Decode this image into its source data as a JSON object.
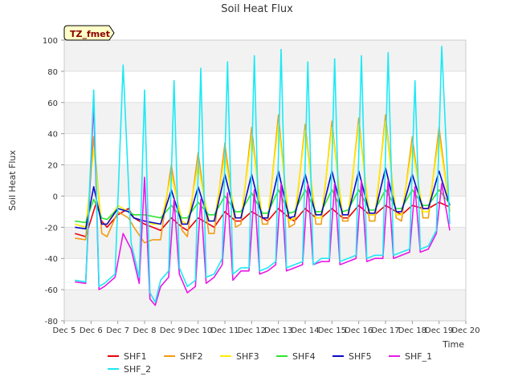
{
  "chart_data": {
    "type": "line",
    "title": "Soil Heat Flux",
    "xlabel": "Time",
    "ylabel": "Soil Heat Flux",
    "ylim": [
      -80,
      100
    ],
    "xlim": [
      5,
      20
    ],
    "yticks": [
      -80,
      -60,
      -40,
      -20,
      0,
      20,
      40,
      60,
      80,
      100
    ],
    "xticks": [
      {
        "value": 5,
        "label": "Dec 5"
      },
      {
        "value": 6,
        "label": "Dec 6"
      },
      {
        "value": 7,
        "label": "Dec 7"
      },
      {
        "value": 8,
        "label": "Dec 8"
      },
      {
        "value": 9,
        "label": "Dec 9"
      },
      {
        "value": 10,
        "label": "Dec 10"
      },
      {
        "value": 11,
        "label": "Dec 11"
      },
      {
        "value": 12,
        "label": "Dec 12"
      },
      {
        "value": 13,
        "label": "Dec 13"
      },
      {
        "value": 14,
        "label": "Dec 14"
      },
      {
        "value": 15,
        "label": "Dec 15"
      },
      {
        "value": 16,
        "label": "Dec 16"
      },
      {
        "value": 17,
        "label": "Dec 17"
      },
      {
        "value": 18,
        "label": "Dec 18"
      },
      {
        "value": 19,
        "label": "Dec 19"
      },
      {
        "value": 20,
        "label": "Dec 20"
      }
    ],
    "annotation": "TZ_fmet",
    "grid": "alternating horizontal bands",
    "legend_position": "bottom",
    "x_unit_note": "x values are day-of-month in December",
    "series": [
      {
        "name": "SHF1",
        "color": "#e8000b",
        "x": [
          5.4,
          5.8,
          6.2,
          6.4,
          6.6,
          7.0,
          7.4,
          7.6,
          8.0,
          8.3,
          8.6,
          9.0,
          9.4,
          9.6,
          10.0,
          10.4,
          10.6,
          11.0,
          11.4,
          11.6,
          12.0,
          12.4,
          12.6,
          13.0,
          13.4,
          13.6,
          14.0,
          14.4,
          14.6,
          15.0,
          15.4,
          15.6,
          16.0,
          16.4,
          16.6,
          17.0,
          17.4,
          17.6,
          18.0,
          18.4,
          18.6,
          19.0,
          19.4
        ],
        "y": [
          -24,
          -26,
          -4,
          -16,
          -20,
          -12,
          -8,
          -14,
          -18,
          -20,
          -22,
          -14,
          -20,
          -22,
          -14,
          -18,
          -20,
          -10,
          -16,
          -16,
          -10,
          -14,
          -16,
          -8,
          -14,
          -16,
          -8,
          -14,
          -14,
          -8,
          -14,
          -14,
          -6,
          -12,
          -12,
          -6,
          -10,
          -12,
          -6,
          -8,
          -8,
          -4,
          -7
        ]
      },
      {
        "name": "SHF2",
        "color": "#f39c12",
        "x": [
          5.4,
          5.8,
          6.1,
          6.4,
          6.6,
          7.0,
          7.4,
          7.6,
          8.0,
          8.3,
          8.6,
          9.0,
          9.4,
          9.6,
          10.0,
          10.4,
          10.6,
          11.0,
          11.4,
          11.6,
          12.0,
          12.4,
          12.6,
          13.0,
          13.4,
          13.6,
          14.0,
          14.4,
          14.6,
          15.0,
          15.4,
          15.6,
          16.0,
          16.4,
          16.6,
          17.0,
          17.4,
          17.6,
          18.0,
          18.4,
          18.6,
          19.0,
          19.4
        ],
        "y": [
          -27,
          -28,
          38,
          -24,
          -26,
          -10,
          -14,
          -20,
          -30,
          -28,
          -28,
          20,
          -22,
          -26,
          28,
          -24,
          -24,
          34,
          -20,
          -18,
          44,
          -18,
          -18,
          52,
          -20,
          -18,
          46,
          -18,
          -18,
          48,
          -16,
          -16,
          50,
          -16,
          -16,
          52,
          -14,
          -16,
          38,
          -14,
          -14,
          44,
          -10
        ]
      },
      {
        "name": "SHF3",
        "color": "#ffec00",
        "x": [
          5.4,
          5.8,
          6.1,
          6.4,
          6.6,
          7.0,
          7.4,
          7.6,
          8.0,
          8.3,
          8.6,
          9.0,
          9.4,
          9.6,
          10.0,
          10.4,
          10.6,
          11.0,
          11.4,
          11.6,
          12.0,
          12.4,
          12.6,
          13.0,
          13.4,
          13.6,
          14.0,
          14.4,
          14.6,
          15.0,
          15.4,
          15.6,
          16.0,
          16.4,
          16.6,
          17.0,
          17.4,
          17.6,
          18.0,
          18.4,
          18.6,
          19.0,
          19.4
        ],
        "y": [
          -18,
          -20,
          30,
          -18,
          -18,
          -6,
          -10,
          -14,
          -16,
          -18,
          -18,
          14,
          -16,
          -18,
          20,
          -16,
          -16,
          26,
          -14,
          -14,
          38,
          -14,
          -14,
          46,
          -16,
          -14,
          42,
          -14,
          -14,
          44,
          -12,
          -12,
          46,
          -12,
          -12,
          48,
          -12,
          -12,
          32,
          -10,
          -10,
          38,
          -8
        ]
      },
      {
        "name": "SHF4",
        "color": "#2ee52e",
        "x": [
          5.4,
          5.8,
          6.1,
          6.4,
          6.6,
          7.0,
          7.4,
          7.6,
          8.0,
          8.3,
          8.6,
          9.0,
          9.4,
          9.6,
          10.0,
          10.4,
          10.6,
          11.0,
          11.4,
          11.6,
          12.0,
          12.4,
          12.6,
          13.0,
          13.4,
          13.6,
          14.0,
          14.4,
          14.6,
          15.0,
          15.4,
          15.6,
          16.0,
          16.4,
          16.6,
          17.0,
          17.4,
          17.6,
          18.0,
          18.4,
          18.6,
          19.0,
          19.4
        ],
        "y": [
          -16,
          -17,
          -2,
          -14,
          -15,
          -8,
          -10,
          -12,
          -12,
          -13,
          -14,
          -6,
          -14,
          -14,
          -4,
          -12,
          -12,
          0,
          -10,
          -10,
          2,
          -11,
          -11,
          4,
          -11,
          -10,
          4,
          -10,
          -10,
          4,
          -10,
          -9,
          4,
          -9,
          -9,
          4,
          -8,
          -8,
          4,
          -6,
          -6,
          4,
          -5
        ]
      },
      {
        "name": "SHF5",
        "color": "#0a0ac8",
        "x": [
          5.4,
          5.8,
          6.1,
          6.4,
          6.6,
          7.0,
          7.4,
          7.6,
          8.0,
          8.3,
          8.6,
          9.0,
          9.4,
          9.6,
          10.0,
          10.4,
          10.6,
          11.0,
          11.4,
          11.6,
          12.0,
          12.4,
          12.6,
          13.0,
          13.4,
          13.6,
          14.0,
          14.4,
          14.6,
          15.0,
          15.4,
          15.6,
          16.0,
          16.4,
          16.6,
          17.0,
          17.4,
          17.6,
          18.0,
          18.4,
          18.6,
          19.0,
          19.4
        ],
        "y": [
          -20,
          -21,
          6,
          -18,
          -18,
          -8,
          -10,
          -14,
          -16,
          -17,
          -18,
          4,
          -18,
          -18,
          6,
          -16,
          -16,
          14,
          -14,
          -14,
          14,
          -14,
          -14,
          16,
          -14,
          -13,
          14,
          -12,
          -12,
          16,
          -12,
          -12,
          16,
          -11,
          -11,
          18,
          -10,
          -10,
          14,
          -8,
          -8,
          16,
          -6
        ]
      },
      {
        "name": "SHF_1",
        "color": "#e619e6",
        "x": [
          5.4,
          5.8,
          6.1,
          6.3,
          6.5,
          6.9,
          7.2,
          7.5,
          7.8,
          8.0,
          8.2,
          8.4,
          8.6,
          8.9,
          9.1,
          9.3,
          9.6,
          9.9,
          10.1,
          10.3,
          10.6,
          10.9,
          11.1,
          11.3,
          11.6,
          11.9,
          12.1,
          12.3,
          12.6,
          12.9,
          13.1,
          13.3,
          13.6,
          13.9,
          14.1,
          14.3,
          14.6,
          14.9,
          15.1,
          15.3,
          15.6,
          15.9,
          16.1,
          16.3,
          16.6,
          16.9,
          17.1,
          17.3,
          17.6,
          17.9,
          18.1,
          18.3,
          18.6,
          18.9,
          19.1,
          19.4
        ],
        "y": [
          -55,
          -56,
          60,
          -60,
          -58,
          -52,
          -24,
          -34,
          -56,
          12,
          -66,
          -70,
          -58,
          -52,
          -2,
          -50,
          -62,
          -58,
          -2,
          -56,
          -52,
          -44,
          2,
          -54,
          -48,
          -48,
          4,
          -50,
          -48,
          -44,
          8,
          -48,
          -46,
          -44,
          8,
          -44,
          -42,
          -42,
          8,
          -44,
          -42,
          -40,
          10,
          -42,
          -40,
          -40,
          10,
          -40,
          -38,
          -36,
          6,
          -36,
          -34,
          -24,
          8,
          -22
        ]
      },
      {
        "name": "SHF_2",
        "color": "#1de9f4",
        "x": [
          5.4,
          5.8,
          6.1,
          6.3,
          6.5,
          6.9,
          7.2,
          7.5,
          7.8,
          8.0,
          8.2,
          8.4,
          8.6,
          8.9,
          9.1,
          9.3,
          9.6,
          9.9,
          10.1,
          10.3,
          10.6,
          10.9,
          11.1,
          11.3,
          11.6,
          11.9,
          12.1,
          12.3,
          12.6,
          12.9,
          13.1,
          13.3,
          13.6,
          13.9,
          14.1,
          14.3,
          14.6,
          14.9,
          15.1,
          15.3,
          15.6,
          15.9,
          16.1,
          16.3,
          16.6,
          16.9,
          17.1,
          17.3,
          17.6,
          17.9,
          18.1,
          18.3,
          18.6,
          18.9,
          19.1,
          19.4
        ],
        "y": [
          -54,
          -55,
          68,
          -58,
          -56,
          -50,
          84,
          -30,
          -52,
          68,
          -62,
          -68,
          -54,
          -48,
          74,
          -46,
          -58,
          -54,
          82,
          -52,
          -50,
          -40,
          86,
          -50,
          -46,
          -46,
          90,
          -48,
          -46,
          -42,
          94,
          -46,
          -44,
          -42,
          86,
          -44,
          -40,
          -40,
          88,
          -42,
          -40,
          -38,
          90,
          -40,
          -38,
          -38,
          92,
          -38,
          -36,
          -34,
          74,
          -34,
          -32,
          -22,
          96,
          -18
        ]
      }
    ]
  }
}
